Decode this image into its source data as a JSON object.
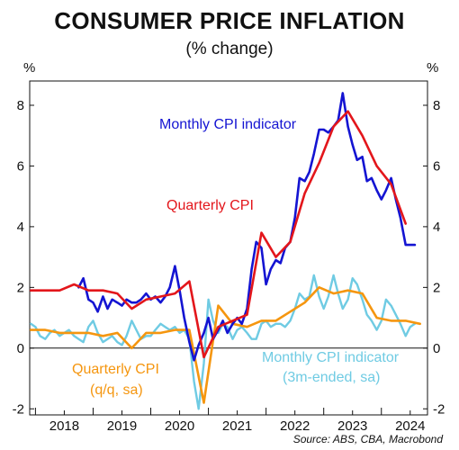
{
  "header": {
    "title": "CONSUMER PRICE INFLATION",
    "subtitle": "(% change)"
  },
  "source": "Source: ABS, CBA, Macrobond",
  "axis_unit_left": "%",
  "axis_unit_right": "%",
  "chart_data": {
    "type": "line",
    "title": "CONSUMER PRICE INFLATION",
    "subtitle": "(% change)",
    "xlabel": "",
    "ylabel": "%",
    "xlim": [
      2017.4,
      2024.3
    ],
    "ylim": [
      -2.2,
      8.8
    ],
    "y_ticks": [
      -2,
      0,
      2,
      4,
      6,
      8
    ],
    "x_tick_labels": [
      "2018",
      "2019",
      "2020",
      "2021",
      "2022",
      "2023",
      "2024"
    ],
    "x_tick_positions": [
      2018.0,
      2019.0,
      2020.0,
      2021.0,
      2022.0,
      2023.0,
      2024.0
    ],
    "grid": false,
    "zero_line": true,
    "series": [
      {
        "name": "Monthly CPI indicator",
        "color": "#1414d2",
        "points": [
          [
            2018.25,
            2.0
          ],
          [
            2018.33,
            2.3
          ],
          [
            2018.42,
            1.6
          ],
          [
            2018.5,
            1.5
          ],
          [
            2018.58,
            1.2
          ],
          [
            2018.67,
            1.7
          ],
          [
            2018.75,
            1.3
          ],
          [
            2018.83,
            1.6
          ],
          [
            2018.92,
            1.5
          ],
          [
            2019.0,
            1.4
          ],
          [
            2019.08,
            1.6
          ],
          [
            2019.17,
            1.5
          ],
          [
            2019.25,
            1.5
          ],
          [
            2019.33,
            1.6
          ],
          [
            2019.42,
            1.8
          ],
          [
            2019.5,
            1.6
          ],
          [
            2019.58,
            1.7
          ],
          [
            2019.67,
            1.5
          ],
          [
            2019.75,
            1.7
          ],
          [
            2019.83,
            2.0
          ],
          [
            2019.92,
            2.7
          ],
          [
            2020.0,
            1.9
          ],
          [
            2020.08,
            1.0
          ],
          [
            2020.17,
            0.2
          ],
          [
            2020.25,
            -0.4
          ],
          [
            2020.33,
            0.1
          ],
          [
            2020.42,
            0.5
          ],
          [
            2020.5,
            1.0
          ],
          [
            2020.58,
            0.3
          ],
          [
            2020.67,
            0.6
          ],
          [
            2020.75,
            0.9
          ],
          [
            2020.83,
            0.5
          ],
          [
            2020.92,
            0.8
          ],
          [
            2021.0,
            1.0
          ],
          [
            2021.08,
            0.8
          ],
          [
            2021.17,
            1.3
          ],
          [
            2021.25,
            2.6
          ],
          [
            2021.33,
            3.5
          ],
          [
            2021.42,
            3.3
          ],
          [
            2021.5,
            2.1
          ],
          [
            2021.58,
            2.6
          ],
          [
            2021.67,
            2.9
          ],
          [
            2021.75,
            2.8
          ],
          [
            2021.83,
            3.3
          ],
          [
            2021.92,
            3.5
          ],
          [
            2022.0,
            4.3
          ],
          [
            2022.08,
            5.6
          ],
          [
            2022.17,
            5.5
          ],
          [
            2022.25,
            5.8
          ],
          [
            2022.33,
            6.4
          ],
          [
            2022.42,
            7.2
          ],
          [
            2022.5,
            7.2
          ],
          [
            2022.58,
            7.1
          ],
          [
            2022.67,
            7.3
          ],
          [
            2022.75,
            7.5
          ],
          [
            2022.83,
            8.4
          ],
          [
            2022.92,
            7.3
          ],
          [
            2023.0,
            6.7
          ],
          [
            2023.08,
            6.2
          ],
          [
            2023.17,
            6.3
          ],
          [
            2023.25,
            5.5
          ],
          [
            2023.33,
            5.6
          ],
          [
            2023.42,
            5.2
          ],
          [
            2023.5,
            4.9
          ],
          [
            2023.58,
            5.2
          ],
          [
            2023.67,
            5.6
          ],
          [
            2023.75,
            4.9
          ],
          [
            2023.83,
            4.3
          ],
          [
            2023.92,
            3.4
          ],
          [
            2024.0,
            3.4
          ],
          [
            2024.08,
            3.4
          ]
        ]
      },
      {
        "name": "Quarterly CPI",
        "color": "#e3161b",
        "points": [
          [
            2017.42,
            1.9
          ],
          [
            2017.67,
            1.9
          ],
          [
            2017.92,
            1.9
          ],
          [
            2018.17,
            2.1
          ],
          [
            2018.42,
            1.9
          ],
          [
            2018.67,
            1.9
          ],
          [
            2018.92,
            1.8
          ],
          [
            2019.17,
            1.3
          ],
          [
            2019.42,
            1.6
          ],
          [
            2019.67,
            1.7
          ],
          [
            2019.92,
            1.8
          ],
          [
            2020.17,
            2.2
          ],
          [
            2020.42,
            -0.3
          ],
          [
            2020.67,
            0.7
          ],
          [
            2020.92,
            0.9
          ],
          [
            2021.17,
            1.1
          ],
          [
            2021.42,
            3.8
          ],
          [
            2021.67,
            3.0
          ],
          [
            2021.92,
            3.5
          ],
          [
            2022.17,
            5.1
          ],
          [
            2022.42,
            6.1
          ],
          [
            2022.67,
            7.3
          ],
          [
            2022.92,
            7.8
          ],
          [
            2023.17,
            7.0
          ],
          [
            2023.42,
            6.0
          ],
          [
            2023.67,
            5.4
          ],
          [
            2023.92,
            4.1
          ]
        ]
      },
      {
        "name": "Quarterly CPI (q/q, sa)",
        "color": "#f5960f",
        "points": [
          [
            2017.42,
            0.6
          ],
          [
            2017.67,
            0.6
          ],
          [
            2017.92,
            0.5
          ],
          [
            2018.17,
            0.5
          ],
          [
            2018.42,
            0.5
          ],
          [
            2018.67,
            0.4
          ],
          [
            2018.92,
            0.5
          ],
          [
            2019.17,
            0.0
          ],
          [
            2019.42,
            0.5
          ],
          [
            2019.67,
            0.5
          ],
          [
            2019.92,
            0.6
          ],
          [
            2020.17,
            0.6
          ],
          [
            2020.42,
            -1.8
          ],
          [
            2020.67,
            1.4
          ],
          [
            2020.92,
            0.8
          ],
          [
            2021.17,
            0.7
          ],
          [
            2021.42,
            0.9
          ],
          [
            2021.67,
            0.9
          ],
          [
            2021.92,
            1.2
          ],
          [
            2022.17,
            1.5
          ],
          [
            2022.42,
            2.0
          ],
          [
            2022.67,
            1.8
          ],
          [
            2022.92,
            1.9
          ],
          [
            2023.17,
            1.8
          ],
          [
            2023.42,
            1.0
          ],
          [
            2023.67,
            0.9
          ],
          [
            2023.92,
            0.9
          ],
          [
            2024.17,
            0.8
          ]
        ]
      },
      {
        "name": "Monthly CPI indicator (3m-ended, sa)",
        "color": "#6fcbe3",
        "points": [
          [
            2017.42,
            0.8
          ],
          [
            2017.5,
            0.7
          ],
          [
            2017.58,
            0.4
          ],
          [
            2017.67,
            0.3
          ],
          [
            2017.75,
            0.5
          ],
          [
            2017.83,
            0.6
          ],
          [
            2017.92,
            0.4
          ],
          [
            2018.0,
            0.5
          ],
          [
            2018.08,
            0.6
          ],
          [
            2018.17,
            0.4
          ],
          [
            2018.25,
            0.3
          ],
          [
            2018.33,
            0.2
          ],
          [
            2018.42,
            0.7
          ],
          [
            2018.5,
            0.9
          ],
          [
            2018.58,
            0.5
          ],
          [
            2018.67,
            0.2
          ],
          [
            2018.75,
            0.3
          ],
          [
            2018.83,
            0.4
          ],
          [
            2018.92,
            0.2
          ],
          [
            2019.0,
            0.1
          ],
          [
            2019.08,
            0.4
          ],
          [
            2019.17,
            0.9
          ],
          [
            2019.25,
            0.6
          ],
          [
            2019.33,
            0.3
          ],
          [
            2019.42,
            0.4
          ],
          [
            2019.5,
            0.4
          ],
          [
            2019.58,
            0.6
          ],
          [
            2019.67,
            0.8
          ],
          [
            2019.75,
            0.7
          ],
          [
            2019.83,
            0.6
          ],
          [
            2019.92,
            0.7
          ],
          [
            2020.0,
            0.5
          ],
          [
            2020.08,
            0.6
          ],
          [
            2020.17,
            0.3
          ],
          [
            2020.25,
            -1.1
          ],
          [
            2020.33,
            -2.0
          ],
          [
            2020.42,
            -0.5
          ],
          [
            2020.5,
            1.6
          ],
          [
            2020.58,
            0.9
          ],
          [
            2020.67,
            0.5
          ],
          [
            2020.75,
            0.8
          ],
          [
            2020.83,
            0.7
          ],
          [
            2020.92,
            0.3
          ],
          [
            2021.0,
            0.6
          ],
          [
            2021.08,
            0.7
          ],
          [
            2021.17,
            0.5
          ],
          [
            2021.25,
            0.3
          ],
          [
            2021.33,
            0.3
          ],
          [
            2021.42,
            0.8
          ],
          [
            2021.5,
            0.9
          ],
          [
            2021.58,
            0.7
          ],
          [
            2021.67,
            0.8
          ],
          [
            2021.75,
            0.8
          ],
          [
            2021.83,
            0.7
          ],
          [
            2021.92,
            0.9
          ],
          [
            2022.0,
            1.3
          ],
          [
            2022.08,
            1.8
          ],
          [
            2022.17,
            1.6
          ],
          [
            2022.25,
            1.7
          ],
          [
            2022.33,
            2.4
          ],
          [
            2022.42,
            1.7
          ],
          [
            2022.5,
            1.3
          ],
          [
            2022.58,
            1.7
          ],
          [
            2022.67,
            2.4
          ],
          [
            2022.75,
            1.8
          ],
          [
            2022.83,
            1.3
          ],
          [
            2022.92,
            1.6
          ],
          [
            2023.0,
            2.3
          ],
          [
            2023.08,
            2.1
          ],
          [
            2023.17,
            1.6
          ],
          [
            2023.25,
            1.1
          ],
          [
            2023.33,
            0.9
          ],
          [
            2023.42,
            0.6
          ],
          [
            2023.5,
            0.9
          ],
          [
            2023.58,
            1.6
          ],
          [
            2023.67,
            1.4
          ],
          [
            2023.75,
            1.1
          ],
          [
            2023.83,
            0.8
          ],
          [
            2023.92,
            0.4
          ],
          [
            2024.0,
            0.7
          ],
          [
            2024.08,
            0.8
          ]
        ]
      }
    ],
    "annotations": [
      {
        "text": "Monthly CPI indicator",
        "series": 0
      },
      {
        "text": "Quarterly CPI",
        "series": 1
      },
      {
        "text": "Quarterly CPI",
        "series": 2
      },
      {
        "text": "(q/q, sa)",
        "series": 2
      },
      {
        "text": "Monthly CPI indicator",
        "series": 3
      },
      {
        "text": "(3m-ended, sa)",
        "series": 3
      }
    ]
  }
}
